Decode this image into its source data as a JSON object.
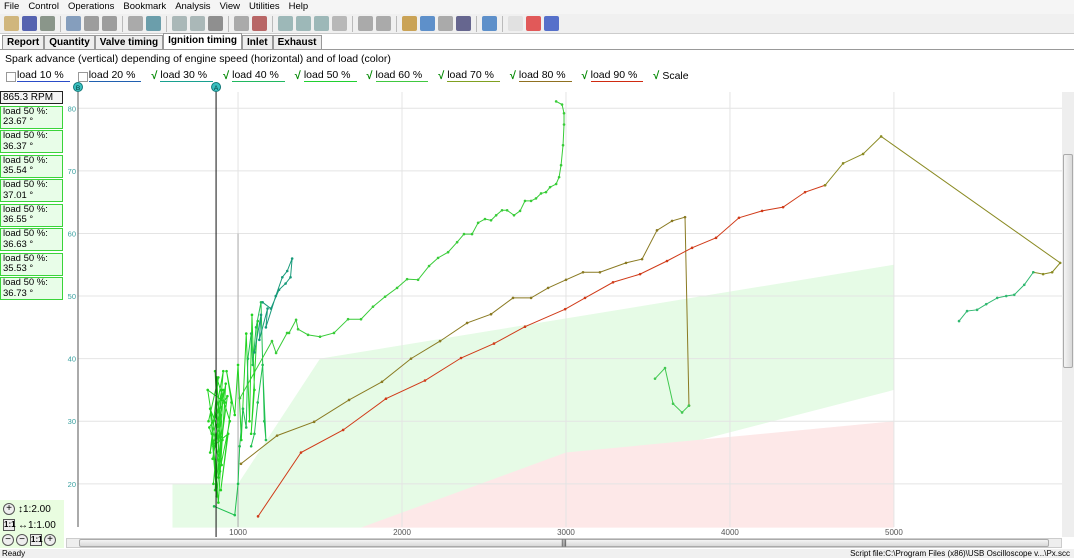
{
  "menu": [
    "File",
    "Control",
    "Operations",
    "Bookmark",
    "Analysis",
    "View",
    "Utilities",
    "Help"
  ],
  "toolbar_icons": [
    "open-icon",
    "save-icon",
    "print-icon",
    "copy-image-icon",
    "paste-icon",
    "paint-icon",
    "cursor-icon",
    "flag-icon",
    "undo-icon",
    "redo-icon",
    "back-icon",
    "filter-icon",
    "filter-clear-icon",
    "check-icon",
    "check-down-icon",
    "check-up-icon",
    "page-icon",
    "stop-icon",
    "export-icon",
    "script-icon",
    "step-icon",
    "pause-icon",
    "record-icon",
    "screen-icon",
    "document-icon",
    "close-red-icon",
    "help-icon"
  ],
  "tabs": [
    "Report",
    "Quantity",
    "Valve timing",
    "Ignition timing",
    "Inlet",
    "Exhaust"
  ],
  "active_tab": "Ignition timing",
  "subtitle": "Spark advance (vertical) depending of engine speed (horizontal) and of load (color)",
  "legend": [
    {
      "label": "load 10 %",
      "checked": false,
      "color": "#2a4cc8"
    },
    {
      "label": "load 20 %",
      "checked": false,
      "color": "#2060b0"
    },
    {
      "label": "load 30 %",
      "checked": true,
      "color": "#18a090"
    },
    {
      "label": "load 40 %",
      "checked": true,
      "color": "#20b860"
    },
    {
      "label": "load 50 %",
      "checked": true,
      "color": "#20d030"
    },
    {
      "label": "load 60 %",
      "checked": true,
      "color": "#40c840"
    },
    {
      "label": "load 70 %",
      "checked": true,
      "color": "#80a020"
    },
    {
      "label": "load 80 %",
      "checked": true,
      "color": "#907020"
    },
    {
      "label": "load 90 %",
      "checked": true,
      "color": "#d02a10"
    },
    {
      "label": "Scale",
      "checked": true,
      "color": ""
    }
  ],
  "cursor": {
    "rpm": "865.3 RPM",
    "readouts": [
      {
        "label": "load 50 %:",
        "value": "23.67 °"
      },
      {
        "label": "load 50 %:",
        "value": "36.37 °"
      },
      {
        "label": "load 50 %:",
        "value": "35.54 °"
      },
      {
        "label": "load 50 %:",
        "value": "37.01 °"
      },
      {
        "label": "load 50 %:",
        "value": "36.55 °"
      },
      {
        "label": "load 50 %:",
        "value": "36.63 °"
      },
      {
        "label": "load 50 %:",
        "value": "35.53 °"
      },
      {
        "label": "load 50 %:",
        "value": "36.73 °"
      }
    ]
  },
  "zoom": {
    "vertical": "↕1:2.00",
    "horizontal": "↔1:1.00",
    "fit_label": "1:1"
  },
  "status": {
    "left": "Ready",
    "right": "Script file:C:\\Program Files (x86)\\USB Oscilloscope v...\\Px.scc"
  },
  "chart_data": {
    "type": "line",
    "xlim": [
      24,
      6025
    ],
    "ylim": [
      13.1,
      82.6
    ],
    "x_ticks": [
      "1000",
      "2000",
      "3000",
      "4000",
      "5000"
    ],
    "y_ticks": [
      "20",
      "30",
      "40",
      "50",
      "60",
      "70",
      "80"
    ],
    "grid": true,
    "cursor_a_x": 866,
    "cursor_a_label": "A",
    "cursor_b_label": "B",
    "scale_zones": [
      {
        "color": "#e6fbe6",
        "points": [
          [
            600,
            20
          ],
          [
            1000,
            20
          ],
          [
            1500,
            40
          ],
          [
            5000,
            55
          ],
          [
            5000,
            35
          ],
          [
            1750,
            13
          ],
          [
            600,
            13
          ]
        ]
      },
      {
        "color": "#fde8e8",
        "points": [
          [
            1750,
            13
          ],
          [
            3000,
            25
          ],
          [
            5000,
            30
          ],
          [
            5000,
            13
          ]
        ]
      }
    ],
    "series": [
      {
        "name": "load 50 %",
        "color": "#22d422",
        "points": [
          [
            820,
            30
          ],
          [
            880,
            37
          ],
          [
            830,
            25
          ],
          [
            900,
            35
          ],
          [
            850,
            20
          ],
          [
            910,
            38
          ],
          [
            840,
            28
          ],
          [
            870,
            18
          ],
          [
            920,
            33
          ],
          [
            815,
            35
          ],
          [
            890,
            22
          ],
          [
            860,
            38
          ],
          [
            905,
            27
          ],
          [
            830,
            32
          ],
          [
            880,
            17
          ],
          [
            925,
            36
          ],
          [
            845,
            24
          ],
          [
            895,
            31
          ],
          [
            860,
            19
          ],
          [
            935,
            34
          ],
          [
            825,
            29
          ],
          [
            900,
            23
          ],
          [
            870,
            37
          ],
          [
            950,
            30
          ],
          [
            880,
            21
          ],
          [
            910,
            35
          ],
          [
            850,
            26
          ],
          [
            940,
            28
          ],
          [
            895,
            19
          ],
          [
            960,
            33
          ],
          [
            930,
            38
          ],
          [
            980,
            31
          ],
          [
            1000,
            39
          ],
          [
            1020,
            27
          ],
          [
            1050,
            44
          ],
          [
            1070,
            30
          ],
          [
            1085,
            47
          ],
          [
            1100,
            35
          ],
          [
            1080,
            28
          ],
          [
            1120,
            46
          ]
        ]
      },
      {
        "name": "load 40 %",
        "color": "#20c050",
        "points": [
          [
            854,
            16.4
          ],
          [
            980,
            15
          ],
          [
            1000,
            20
          ],
          [
            1010,
            26
          ],
          [
            1030,
            32
          ],
          [
            1050,
            29
          ],
          [
            1060,
            40
          ],
          [
            1080,
            44
          ],
          [
            1090,
            39
          ],
          [
            1110,
            45
          ],
          [
            1140,
            49
          ],
          [
            1160,
            30
          ],
          [
            1170,
            27
          ],
          [
            1150,
            39
          ],
          [
            1120,
            33
          ],
          [
            1100,
            28
          ],
          [
            1080,
            26
          ]
        ]
      },
      {
        "name": "load 30 %",
        "color": "#189a7a",
        "points": [
          [
            1100,
            41
          ],
          [
            1140,
            47
          ],
          [
            1130,
            43
          ],
          [
            1180,
            48
          ],
          [
            1170,
            45
          ],
          [
            1230,
            50
          ],
          [
            1270,
            53
          ],
          [
            1300,
            54
          ],
          [
            1330,
            56
          ],
          [
            1320,
            53
          ],
          [
            1290,
            52
          ],
          [
            1250,
            51
          ],
          [
            1200,
            48
          ],
          [
            1150,
            49
          ]
        ]
      },
      {
        "name": "load 60 %",
        "color": "#38cc38",
        "points": [
          [
            1012,
            33.7
          ],
          [
            1207,
            42.8
          ],
          [
            1232,
            40.9
          ],
          [
            1299,
            44.1
          ],
          [
            1311,
            44.1
          ],
          [
            1354,
            46.2
          ],
          [
            1366,
            44.7
          ],
          [
            1427,
            43.8
          ],
          [
            1500,
            43.5
          ],
          [
            1585,
            44.1
          ],
          [
            1671,
            46.3
          ],
          [
            1750,
            46.3
          ],
          [
            1823,
            48.3
          ],
          [
            1897,
            49.9
          ],
          [
            1970,
            51.3
          ],
          [
            2031,
            52.7
          ],
          [
            2098,
            52.6
          ],
          [
            2165,
            54.8
          ],
          [
            2220,
            56.1
          ],
          [
            2281,
            57.0
          ],
          [
            2336,
            58.6
          ],
          [
            2378,
            59.9
          ],
          [
            2427,
            59.9
          ],
          [
            2464,
            61.7
          ],
          [
            2506,
            62.3
          ],
          [
            2543,
            62.1
          ],
          [
            2574,
            62.9
          ],
          [
            2610,
            63.7
          ],
          [
            2641,
            63.7
          ],
          [
            2683,
            62.9
          ],
          [
            2720,
            63.6
          ],
          [
            2750,
            65.2
          ],
          [
            2787,
            65.2
          ],
          [
            2817,
            65.6
          ],
          [
            2848,
            66.4
          ],
          [
            2878,
            66.6
          ],
          [
            2903,
            67.4
          ],
          [
            2940,
            67.9
          ],
          [
            2958,
            69.0
          ],
          [
            2970,
            70.9
          ],
          [
            2982,
            74.1
          ],
          [
            2988,
            77.4
          ],
          [
            2988,
            79.2
          ],
          [
            2976,
            80.6
          ],
          [
            2940,
            81.1
          ]
        ]
      },
      {
        "name": "load 80 %",
        "color": "#8a7a22",
        "points": [
          [
            1018,
            23.2
          ],
          [
            1238,
            27.7
          ],
          [
            1464,
            29.9
          ],
          [
            1677,
            33.4
          ],
          [
            1878,
            36.3
          ],
          [
            2055,
            40.0
          ],
          [
            2232,
            42.8
          ],
          [
            2397,
            45.7
          ],
          [
            2543,
            47.1
          ],
          [
            2677,
            49.7
          ],
          [
            2787,
            49.7
          ],
          [
            2891,
            51.3
          ],
          [
            3000,
            52.6
          ],
          [
            3104,
            53.8
          ],
          [
            3207,
            53.8
          ],
          [
            3366,
            55.3
          ],
          [
            3464,
            55.9
          ],
          [
            3555,
            60.5
          ],
          [
            3647,
            62.0
          ],
          [
            3726,
            62.6
          ],
          [
            3750,
            32.5
          ]
        ]
      },
      {
        "name": "load 70 %",
        "color": "#40c850",
        "points": [
          [
            3750,
            32.5
          ],
          [
            3708,
            31.4
          ],
          [
            3653,
            32.8
          ],
          [
            3604,
            38.5
          ],
          [
            3543,
            36.8
          ]
        ]
      },
      {
        "name": "load 90 %",
        "color": "#d03a18",
        "points": [
          [
            1122,
            14.8
          ],
          [
            1384,
            25.0
          ],
          [
            1641,
            28.6
          ],
          [
            1902,
            33.6
          ],
          [
            2140,
            36.5
          ],
          [
            2360,
            40.1
          ],
          [
            2561,
            42.4
          ],
          [
            2750,
            45.1
          ],
          [
            2995,
            47.9
          ],
          [
            3116,
            49.7
          ],
          [
            3287,
            52.2
          ],
          [
            3452,
            53.5
          ],
          [
            3616,
            55.6
          ],
          [
            3769,
            57.7
          ],
          [
            3915,
            59.3
          ],
          [
            4055,
            62.5
          ],
          [
            4196,
            63.6
          ],
          [
            4324,
            64.2
          ],
          [
            4458,
            66.6
          ],
          [
            4580,
            67.7
          ]
        ]
      },
      {
        "name": "load 80 %",
        "color": "#8a8a22",
        "points": [
          [
            4580,
            67.7
          ],
          [
            4690,
            71.2
          ],
          [
            4812,
            72.7
          ],
          [
            4922,
            75.5
          ],
          [
            6014,
            55.3
          ],
          [
            5965,
            53.8
          ],
          [
            5910,
            53.5
          ],
          [
            5850,
            53.8
          ]
        ]
      },
      {
        "name": "load 60 %",
        "color": "#30b870",
        "points": [
          [
            5850,
            53.8
          ],
          [
            5795,
            51.8
          ],
          [
            5734,
            50.2
          ],
          [
            5685,
            50.0
          ],
          [
            5630,
            49.7
          ],
          [
            5563,
            48.7
          ],
          [
            5507,
            47.8
          ],
          [
            5446,
            47.6
          ],
          [
            5397,
            46.0
          ]
        ]
      }
    ]
  }
}
